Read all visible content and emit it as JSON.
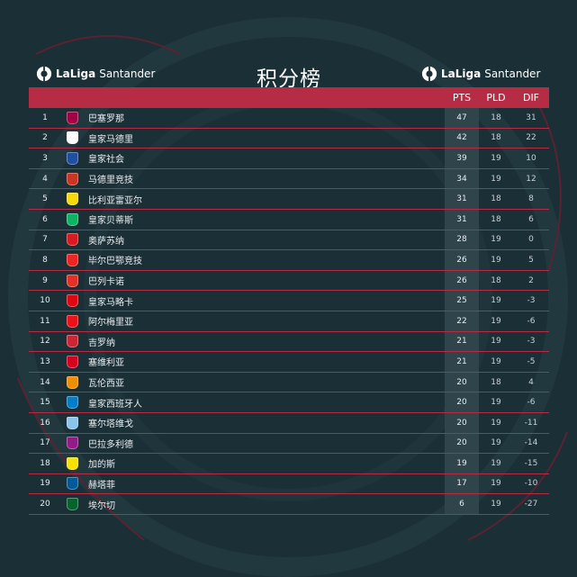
{
  "title": "积分榜",
  "brand": {
    "name": "LaLiga",
    "sponsor": "Santander"
  },
  "columns": {
    "pts": "PTS",
    "pld": "PLD",
    "dif": "DIF"
  },
  "colors": {
    "accent": "#b72c45",
    "background": "#1b2f36",
    "pts_column": "#2f444b"
  },
  "standings": [
    {
      "pos": "1",
      "team": "巴塞罗那",
      "pts": "47",
      "pld": "18",
      "dif": "31",
      "crest_color": "#a50044",
      "crest_icon": "barcelona-crest-icon"
    },
    {
      "pos": "2",
      "team": "皇家马德里",
      "pts": "42",
      "pld": "18",
      "dif": "22",
      "crest_color": "#ffffff",
      "crest_icon": "real-madrid-crest-icon"
    },
    {
      "pos": "3",
      "team": "皇家社会",
      "pts": "39",
      "pld": "19",
      "dif": "10",
      "crest_color": "#1f4fa0",
      "crest_icon": "real-sociedad-crest-icon"
    },
    {
      "pos": "4",
      "team": "马德里竞技",
      "pts": "34",
      "pld": "19",
      "dif": "12",
      "crest_color": "#cb3524",
      "crest_icon": "atletico-madrid-crest-icon"
    },
    {
      "pos": "5",
      "team": "比利亚雷亚尔",
      "pts": "31",
      "pld": "18",
      "dif": "8",
      "crest_color": "#f5d90a",
      "crest_icon": "villarreal-crest-icon"
    },
    {
      "pos": "6",
      "team": "皇家贝蒂斯",
      "pts": "31",
      "pld": "18",
      "dif": "6",
      "crest_color": "#0bb363",
      "crest_icon": "betis-crest-icon"
    },
    {
      "pos": "7",
      "team": "奥萨苏纳",
      "pts": "28",
      "pld": "19",
      "dif": "0",
      "crest_color": "#d91a21",
      "crest_icon": "osasuna-crest-icon"
    },
    {
      "pos": "8",
      "team": "毕尔巴鄂竞技",
      "pts": "26",
      "pld": "19",
      "dif": "5",
      "crest_color": "#ee2523",
      "crest_icon": "athletic-club-crest-icon"
    },
    {
      "pos": "9",
      "team": "巴列卡诺",
      "pts": "26",
      "pld": "18",
      "dif": "2",
      "crest_color": "#e53027",
      "crest_icon": "rayo-vallecano-crest-icon"
    },
    {
      "pos": "10",
      "team": "皇家马略卡",
      "pts": "25",
      "pld": "19",
      "dif": "-3",
      "crest_color": "#e20613",
      "crest_icon": "mallorca-crest-icon"
    },
    {
      "pos": "11",
      "team": "阿尔梅里亚",
      "pts": "22",
      "pld": "19",
      "dif": "-6",
      "crest_color": "#ee1119",
      "crest_icon": "almeria-crest-icon"
    },
    {
      "pos": "12",
      "team": "吉罗纳",
      "pts": "21",
      "pld": "19",
      "dif": "-3",
      "crest_color": "#cd2534",
      "crest_icon": "girona-crest-icon"
    },
    {
      "pos": "13",
      "team": "塞维利亚",
      "pts": "21",
      "pld": "19",
      "dif": "-5",
      "crest_color": "#d8001f",
      "crest_icon": "sevilla-crest-icon"
    },
    {
      "pos": "14",
      "team": "瓦伦西亚",
      "pts": "20",
      "pld": "18",
      "dif": "4",
      "crest_color": "#f18e00",
      "crest_icon": "valencia-crest-icon"
    },
    {
      "pos": "15",
      "team": "皇家西班牙人",
      "pts": "20",
      "pld": "19",
      "dif": "-6",
      "crest_color": "#007fc8",
      "crest_icon": "espanyol-crest-icon"
    },
    {
      "pos": "16",
      "team": "塞尔塔维戈",
      "pts": "20",
      "pld": "19",
      "dif": "-11",
      "crest_color": "#8ac3ee",
      "crest_icon": "celta-vigo-crest-icon"
    },
    {
      "pos": "17",
      "team": "巴拉多利德",
      "pts": "20",
      "pld": "19",
      "dif": "-14",
      "crest_color": "#921b88",
      "crest_icon": "valladolid-crest-icon"
    },
    {
      "pos": "18",
      "team": "加的斯",
      "pts": "19",
      "pld": "19",
      "dif": "-15",
      "crest_color": "#f6e100",
      "crest_icon": "cadiz-crest-icon"
    },
    {
      "pos": "19",
      "team": "赫塔菲",
      "pts": "17",
      "pld": "19",
      "dif": "-10",
      "crest_color": "#005999",
      "crest_icon": "getafe-crest-icon"
    },
    {
      "pos": "20",
      "team": "埃尔切",
      "pts": "6",
      "pld": "19",
      "dif": "-27",
      "crest_color": "#05642c",
      "crest_icon": "elche-crest-icon"
    }
  ]
}
